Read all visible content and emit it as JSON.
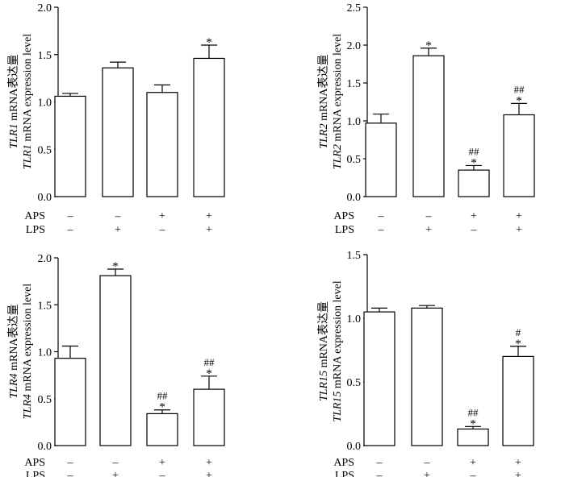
{
  "chart_data": [
    {
      "type": "bar",
      "ylabel_cn": "TLR1 mRNA表达量",
      "ylabel_en": "TLR1 mRNA expression level",
      "gene": "TLR1",
      "ylim": [
        0,
        2.0
      ],
      "yticks": [
        "0.0",
        "0.5",
        "1.0",
        "1.5",
        "2.0"
      ],
      "values": [
        1.06,
        1.36,
        1.1,
        1.46
      ],
      "errors": [
        0.03,
        0.06,
        0.08,
        0.14
      ],
      "annotations": [
        [],
        [],
        [],
        [
          "*"
        ]
      ],
      "treatment_rows": [
        {
          "label": "APS",
          "marks": [
            "–",
            "–",
            "+",
            "+"
          ]
        },
        {
          "label": "LPS",
          "marks": [
            "–",
            "+",
            "–",
            "+"
          ]
        }
      ]
    },
    {
      "type": "bar",
      "ylabel_cn": "TLR2 mRNA表达量",
      "ylabel_en": "TLR2 mRNA expression level",
      "gene": "TLR2",
      "ylim": [
        0,
        2.5
      ],
      "yticks": [
        "0.0",
        "0.5",
        "1.0",
        "1.5",
        "2.0",
        "2.5"
      ],
      "values": [
        0.97,
        1.86,
        0.35,
        1.08
      ],
      "errors": [
        0.12,
        0.1,
        0.06,
        0.15
      ],
      "annotations": [
        [],
        [
          "*"
        ],
        [
          "##",
          "*"
        ],
        [
          "##",
          "*"
        ]
      ],
      "treatment_rows": [
        {
          "label": "APS",
          "marks": [
            "–",
            "–",
            "+",
            "+"
          ]
        },
        {
          "label": "LPS",
          "marks": [
            "–",
            "+",
            "–",
            "+"
          ]
        }
      ]
    },
    {
      "type": "bar",
      "ylabel_cn": "TLR4 mRNA表达量",
      "ylabel_en": "TLR4 mRNA expression level",
      "gene": "TLR4",
      "ylim": [
        0,
        2.0
      ],
      "yticks": [
        "0.0",
        "0.5",
        "1.0",
        "1.5",
        "2.0"
      ],
      "values": [
        0.93,
        1.81,
        0.34,
        0.6
      ],
      "errors": [
        0.13,
        0.07,
        0.04,
        0.14
      ],
      "annotations": [
        [],
        [
          "*"
        ],
        [
          "##",
          "*"
        ],
        [
          "##",
          "*"
        ]
      ],
      "treatment_rows": [
        {
          "label": "APS",
          "marks": [
            "–",
            "–",
            "+",
            "+"
          ]
        },
        {
          "label": "LPS",
          "marks": [
            "–",
            "+",
            "–",
            "+"
          ]
        }
      ]
    },
    {
      "type": "bar",
      "ylabel_cn": "TLR15 mRNA表达量",
      "ylabel_en": "TLR15 mRNA expression level",
      "gene": "TLR15",
      "ylim": [
        0,
        1.5
      ],
      "yticks": [
        "0.0",
        "0.5",
        "1.0",
        "1.5"
      ],
      "values": [
        1.05,
        1.08,
        0.13,
        0.7
      ],
      "errors": [
        0.03,
        0.02,
        0.02,
        0.08
      ],
      "annotations": [
        [],
        [],
        [
          "##",
          "*"
        ],
        [
          "#",
          "*"
        ]
      ],
      "treatment_rows": [
        {
          "label": "APS",
          "marks": [
            "–",
            "–",
            "+",
            "+"
          ]
        },
        {
          "label": "LPS",
          "marks": [
            "–",
            "+",
            "–",
            "+"
          ]
        }
      ]
    }
  ]
}
